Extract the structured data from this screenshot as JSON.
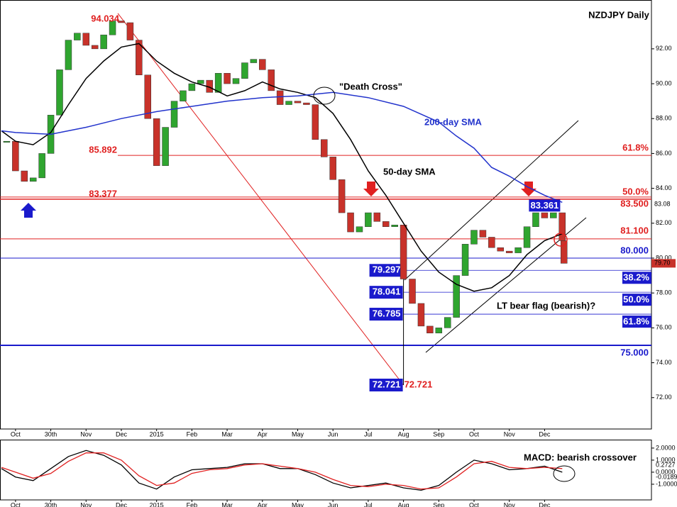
{
  "chart_data": [
    {
      "type": "candlestick-close",
      "title": "NZDJPY Daily",
      "annotations": [
        "\"Death Cross\"",
        "LT bear flag (bearish)?"
      ],
      "xlim": [
        -0.44,
        18.03
      ],
      "ylim": [
        70.2,
        94.8
      ],
      "grid": false,
      "xticks": [
        {
          "value": 0,
          "label": "Oct"
        },
        {
          "value": 1,
          "label": "30th"
        },
        {
          "value": 2,
          "label": "Nov"
        },
        {
          "value": 3,
          "label": "Dec"
        },
        {
          "value": 4,
          "label": "2015"
        },
        {
          "value": 5,
          "label": "Feb"
        },
        {
          "value": 6,
          "label": "Mar"
        },
        {
          "value": 7,
          "label": "Apr"
        },
        {
          "value": 8,
          "label": "May"
        },
        {
          "value": 9,
          "label": "Jun"
        },
        {
          "value": 10,
          "label": "Jul"
        },
        {
          "value": 11,
          "label": "Aug"
        },
        {
          "value": 12,
          "label": "Sep"
        },
        {
          "value": 13,
          "label": "Oct"
        },
        {
          "value": 14,
          "label": "Nov"
        },
        {
          "value": 15,
          "label": "Dec"
        }
      ],
      "yticks": [
        {
          "value": 72,
          "label": "72.00"
        },
        {
          "value": 74,
          "label": "74.00"
        },
        {
          "value": 76,
          "label": "76.00"
        },
        {
          "value": 78,
          "label": "78.00"
        },
        {
          "value": 80,
          "label": "80.00"
        },
        {
          "value": 82,
          "label": "82.00"
        },
        {
          "value": 84,
          "label": "84.00"
        },
        {
          "value": 86,
          "label": "86.00"
        },
        {
          "value": 88,
          "label": "88.00"
        },
        {
          "value": 90,
          "label": "90.00"
        },
        {
          "value": 92,
          "label": "92.00"
        }
      ],
      "up_color": "#2fa52f",
      "down_color": "#c8322a",
      "x": [
        -0.25,
        0,
        0.25,
        0.5,
        0.75,
        1,
        1.25,
        1.5,
        1.75,
        2,
        2.25,
        2.5,
        2.75,
        3,
        3.25,
        3.5,
        3.75,
        4,
        4.25,
        4.5,
        4.75,
        5,
        5.25,
        5.5,
        5.75,
        6,
        6.25,
        6.5,
        6.75,
        7,
        7.25,
        7.5,
        7.75,
        8,
        8.25,
        8.5,
        8.75,
        9,
        9.25,
        9.5,
        9.75,
        10,
        10.25,
        10.5,
        10.75,
        11,
        11.25,
        11.5,
        11.75,
        12,
        12.25,
        12.5,
        12.75,
        13,
        13.25,
        13.5,
        13.75,
        14,
        14.25,
        14.5,
        14.75,
        15,
        15.25,
        15.5,
        15.55
      ],
      "values": [
        86.7,
        85.0,
        84.4,
        84.6,
        86.0,
        88.2,
        90.8,
        92.5,
        92.9,
        92.2,
        92.0,
        92.8,
        93.6,
        93.5,
        92.5,
        90.5,
        88.0,
        85.3,
        87.5,
        89.0,
        89.6,
        90.0,
        90.2,
        89.5,
        90.6,
        90.0,
        90.3,
        91.2,
        91.4,
        90.8,
        89.6,
        88.8,
        89.0,
        88.9,
        88.8,
        86.8,
        85.8,
        84.5,
        82.6,
        81.5,
        81.8,
        82.6,
        82.1,
        81.8,
        81.9,
        78.8,
        77.4,
        76.1,
        75.7,
        76.0,
        76.6,
        79.0,
        80.8,
        81.6,
        81.2,
        80.6,
        80.4,
        80.3,
        80.6,
        81.8,
        82.6,
        82.3,
        82.6,
        81.0,
        79.7
      ],
      "sma": [
        {
          "name": "50-day SMA",
          "color": "#000000",
          "x": [
            -0.4,
            0,
            0.5,
            1,
            1.5,
            2,
            2.5,
            3,
            3.5,
            4,
            4.5,
            5,
            5.5,
            6,
            6.5,
            7,
            7.5,
            8,
            8.5,
            9,
            9.5,
            10,
            10.5,
            11,
            11.5,
            12,
            12.5,
            13,
            13.5,
            14,
            14.5,
            15,
            15.5
          ],
          "values": [
            87.3,
            86.7,
            86.5,
            87.2,
            88.8,
            90.3,
            91.3,
            92.1,
            92.3,
            91.3,
            90.6,
            90.1,
            89.8,
            89.3,
            89.6,
            90.1,
            89.7,
            89.5,
            89.2,
            88.3,
            86.8,
            85.0,
            83.6,
            82.0,
            80.4,
            79.2,
            78.5,
            78.1,
            78.3,
            79.0,
            80.2,
            81.0,
            81.4
          ]
        },
        {
          "name": "200-day SMA",
          "color": "#2233cc",
          "x": [
            -0.4,
            0,
            1,
            2,
            3,
            4,
            5,
            6,
            7,
            8,
            9,
            10,
            11,
            12,
            12.5,
            13,
            13.5,
            14,
            14.5,
            15,
            15.5
          ],
          "values": [
            87.3,
            87.2,
            87.1,
            87.5,
            88.0,
            88.4,
            88.7,
            89.0,
            89.2,
            89.3,
            89.5,
            89.2,
            88.7,
            87.8,
            87.0,
            86.3,
            85.2,
            84.7,
            84.1,
            83.6,
            83.2
          ]
        }
      ],
      "fib_color": "#e02020",
      "retracement_color": "#1a1acc",
      "swing_high": {
        "value": 94.034,
        "x": 2.9
      },
      "swing_low": {
        "value": 72.721,
        "x": 11.0
      },
      "recent_high": {
        "value": 83.361,
        "x": 15.0
      },
      "fib_levels": [
        {
          "value": 85.892,
          "ratio": "61.8%"
        },
        {
          "value": 83.377,
          "ratio": "50.0%"
        }
      ],
      "levels": [
        {
          "value": 83.5,
          "label": "83.500",
          "color": "#e02020"
        },
        {
          "value": 81.1,
          "label": "81.100",
          "color": "#e02020"
        },
        {
          "value": 80,
          "label": "80.000",
          "color": "#1a1acc"
        },
        {
          "value": 75,
          "label": "75.000",
          "color": "#1a1acc"
        }
      ],
      "retracements": [
        {
          "value": 79.297,
          "ratio": "38.2%"
        },
        {
          "value": 78.041,
          "ratio": "50.0%"
        },
        {
          "value": 76.785,
          "ratio": "61.8%"
        }
      ],
      "sma200_last": {
        "value": 83.08
      },
      "last_price": {
        "value": 79.7,
        "label": "79.70"
      }
    },
    {
      "type": "line",
      "title": "MACD: bearish crossover",
      "xlim": [
        -0.44,
        18.03
      ],
      "ylim": [
        -2.3,
        2.7
      ],
      "grid": false,
      "xticks": [
        {
          "value": 0,
          "label": "Oct"
        },
        {
          "value": 1,
          "label": "30th"
        },
        {
          "value": 2,
          "label": "Nov"
        },
        {
          "value": 3,
          "label": "Dec"
        },
        {
          "value": 4,
          "label": "2015"
        },
        {
          "value": 5,
          "label": "Feb"
        },
        {
          "value": 6,
          "label": "Mar"
        },
        {
          "value": 7,
          "label": "Apr"
        },
        {
          "value": 8,
          "label": "May"
        },
        {
          "value": 9,
          "label": "Jun"
        },
        {
          "value": 10,
          "label": "Jul"
        },
        {
          "value": 11,
          "label": "Aug"
        },
        {
          "value": 12,
          "label": "Sep"
        },
        {
          "value": 13,
          "label": "Oct"
        },
        {
          "value": 14,
          "label": "Nov"
        },
        {
          "value": 15,
          "label": "Dec"
        }
      ],
      "yticks": [
        {
          "value": -1,
          "label": "-1.0000"
        },
        {
          "value": 0,
          "label": "0.0000"
        },
        {
          "value": 1,
          "label": "1.0000"
        },
        {
          "value": 2,
          "label": "2.0000"
        }
      ],
      "x": [
        -0.4,
        0,
        0.5,
        1,
        1.5,
        2,
        2.5,
        3,
        3.5,
        4,
        4.5,
        5,
        5.5,
        6,
        6.5,
        7,
        7.5,
        8,
        8.5,
        9,
        9.5,
        10,
        10.5,
        11,
        11.5,
        12,
        12.5,
        13,
        13.5,
        14,
        14.5,
        15,
        15.5
      ],
      "series": [
        {
          "color": "#000000",
          "values": [
            0.3,
            -0.4,
            -0.7,
            0.3,
            1.3,
            1.8,
            1.4,
            0.6,
            -0.9,
            -1.4,
            -0.4,
            0.2,
            0.3,
            0.4,
            0.7,
            0.7,
            0.3,
            0.3,
            -0.2,
            -0.9,
            -1.3,
            -1.1,
            -0.9,
            -1.3,
            -1.5,
            -1.1,
            0,
            1.0,
            0.7,
            0.2,
            0.3,
            0.5,
            0.0
          ]
        },
        {
          "color": "#e02020",
          "values": [
            0.4,
            0.0,
            -0.5,
            -0.1,
            0.9,
            1.6,
            1.6,
            1.0,
            -0.3,
            -1.1,
            -0.9,
            -0.1,
            0.2,
            0.3,
            0.6,
            0.7,
            0.5,
            0.3,
            0.0,
            -0.6,
            -1.1,
            -1.2,
            -1.0,
            -1.1,
            -1.4,
            -1.3,
            -0.4,
            0.7,
            0.9,
            0.4,
            0.3,
            0.4,
            0.3
          ]
        }
      ],
      "last_values": [
        {
          "value": 0.2727,
          "color": "#e02020"
        },
        {
          "value": -0.0189,
          "color": "#000000"
        }
      ]
    }
  ]
}
